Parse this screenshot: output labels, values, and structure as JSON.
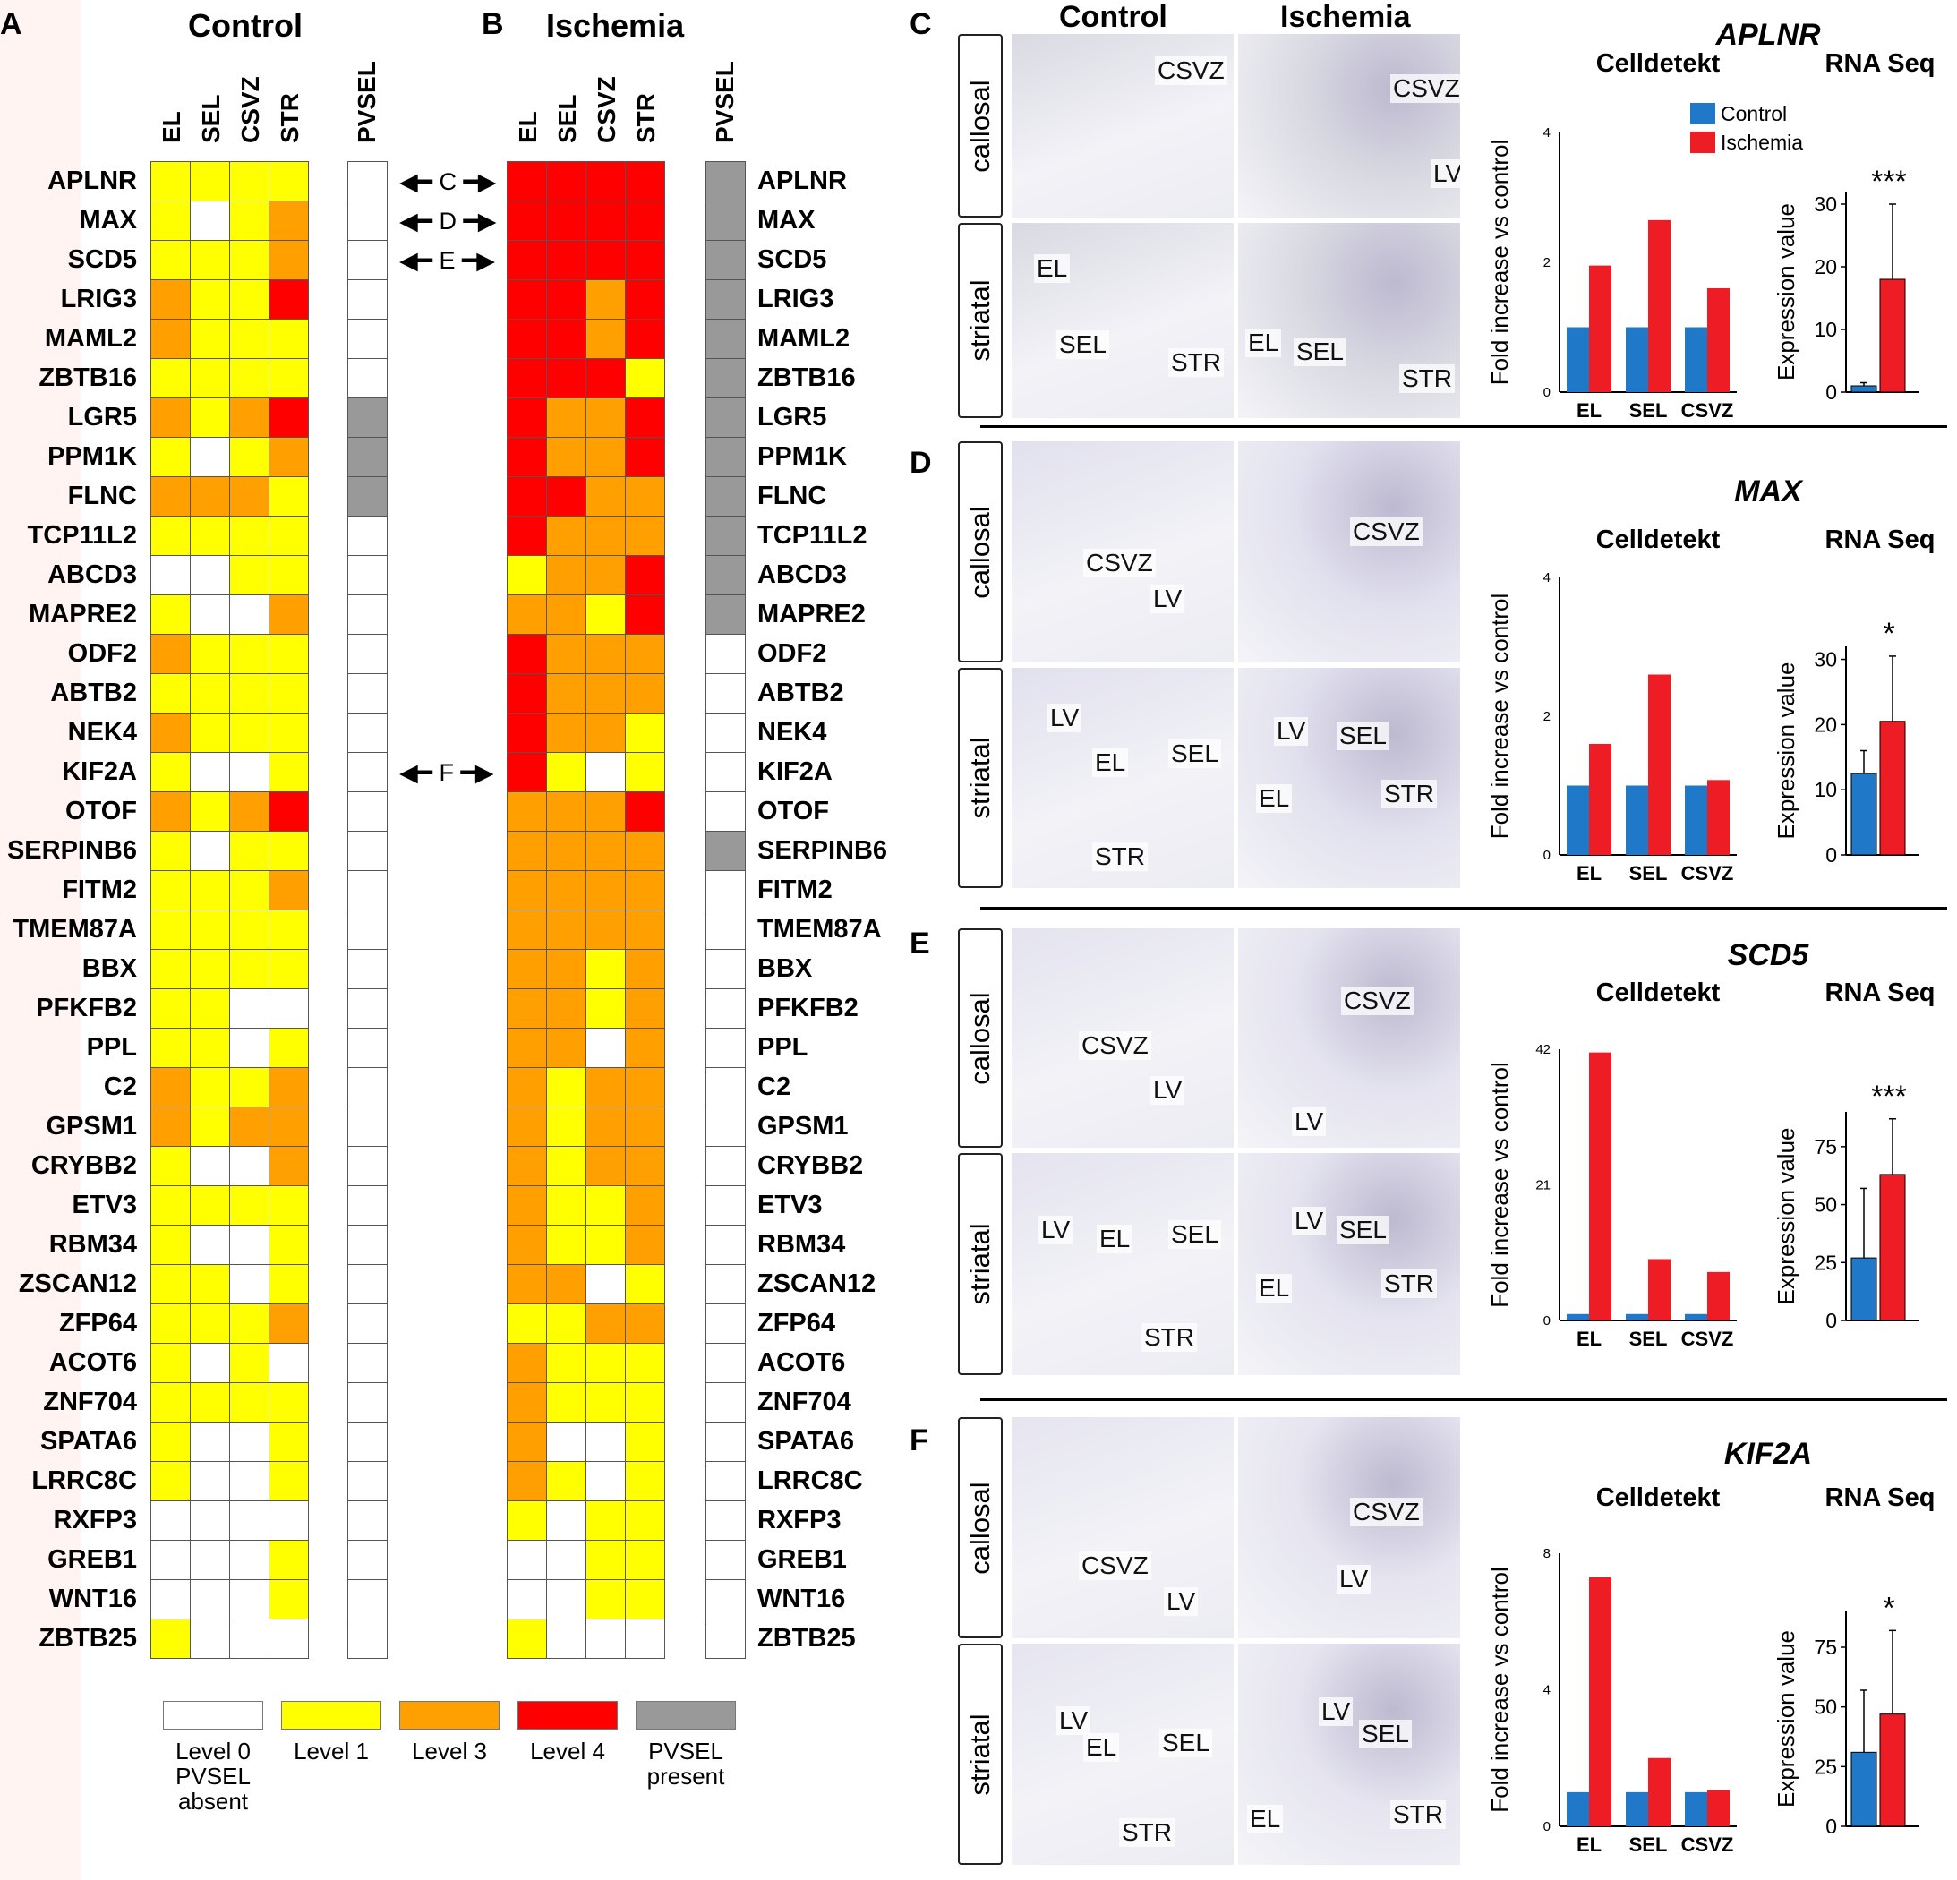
{
  "panel_letters": {
    "a": "A",
    "b": "B",
    "c": "C",
    "d": "D",
    "e": "E",
    "f": "F"
  },
  "heatmap": {
    "control_title": "Control",
    "ischemia_title": "Ischemia",
    "columns": [
      "EL",
      "SEL",
      "CSVZ",
      "STR"
    ],
    "pvsel_label": "PVSEL",
    "colors": {
      "0": "#ffffff",
      "1": "#ffff00",
      "3": "#ffa000",
      "4": "#ff0000",
      "pvsel_present": "#999999",
      "pvsel_absent": "#ffffff"
    },
    "genes": [
      "APLNR",
      "MAX",
      "SCD5",
      "LRIG3",
      "MAML2",
      "ZBTB16",
      "LGR5",
      "PPM1K",
      "FLNC",
      "TCP11L2",
      "ABCD3",
      "MAPRE2",
      "ODF2",
      "ABTB2",
      "NEK4",
      "KIF2A",
      "OTOF",
      "SERPINB6",
      "FITM2",
      "TMEM87A",
      "BBX",
      "PFKFB2",
      "PPL",
      "C2",
      "GPSM1",
      "CRYBB2",
      "ETV3",
      "RBM34",
      "ZSCAN12",
      "ZFP64",
      "ACOT6",
      "ZNF704",
      "SPATA6",
      "LRRC8C",
      "RXFP3",
      "GREB1",
      "WNT16",
      "ZBTB25"
    ],
    "control": [
      [
        1,
        1,
        1,
        1
      ],
      [
        1,
        0,
        1,
        3
      ],
      [
        1,
        1,
        1,
        3
      ],
      [
        3,
        1,
        1,
        4
      ],
      [
        3,
        1,
        1,
        1
      ],
      [
        1,
        1,
        1,
        1
      ],
      [
        3,
        1,
        3,
        4
      ],
      [
        1,
        0,
        1,
        3
      ],
      [
        3,
        3,
        3,
        1
      ],
      [
        1,
        1,
        1,
        1
      ],
      [
        0,
        0,
        1,
        1
      ],
      [
        1,
        0,
        0,
        3
      ],
      [
        3,
        1,
        1,
        1
      ],
      [
        1,
        1,
        1,
        1
      ],
      [
        3,
        1,
        1,
        1
      ],
      [
        1,
        0,
        0,
        1
      ],
      [
        3,
        1,
        3,
        4
      ],
      [
        1,
        0,
        1,
        1
      ],
      [
        1,
        1,
        1,
        3
      ],
      [
        1,
        1,
        1,
        1
      ],
      [
        1,
        1,
        1,
        1
      ],
      [
        1,
        1,
        0,
        0
      ],
      [
        1,
        1,
        0,
        1
      ],
      [
        3,
        1,
        1,
        3
      ],
      [
        3,
        1,
        3,
        3
      ],
      [
        1,
        0,
        0,
        3
      ],
      [
        1,
        1,
        1,
        1
      ],
      [
        1,
        0,
        0,
        1
      ],
      [
        1,
        1,
        0,
        1
      ],
      [
        1,
        1,
        1,
        3
      ],
      [
        1,
        0,
        1,
        0
      ],
      [
        1,
        1,
        1,
        1
      ],
      [
        1,
        0,
        0,
        1
      ],
      [
        1,
        0,
        0,
        1
      ],
      [
        0,
        0,
        0,
        0
      ],
      [
        0,
        0,
        0,
        1
      ],
      [
        0,
        0,
        0,
        1
      ],
      [
        1,
        0,
        0,
        0
      ]
    ],
    "control_pvsel": [
      0,
      0,
      0,
      0,
      0,
      0,
      1,
      1,
      1,
      0,
      0,
      0,
      0,
      0,
      0,
      0,
      0,
      0,
      0,
      0,
      0,
      0,
      0,
      0,
      0,
      0,
      0,
      0,
      0,
      0,
      0,
      0,
      0,
      0,
      0,
      0,
      0,
      0
    ],
    "ischemia": [
      [
        4,
        4,
        4,
        4
      ],
      [
        4,
        4,
        4,
        4
      ],
      [
        4,
        4,
        4,
        4
      ],
      [
        4,
        4,
        3,
        4
      ],
      [
        4,
        4,
        3,
        4
      ],
      [
        4,
        4,
        4,
        1
      ],
      [
        4,
        3,
        3,
        4
      ],
      [
        4,
        3,
        3,
        4
      ],
      [
        4,
        4,
        3,
        3
      ],
      [
        4,
        3,
        3,
        3
      ],
      [
        1,
        3,
        3,
        4
      ],
      [
        3,
        3,
        1,
        4
      ],
      [
        4,
        3,
        3,
        3
      ],
      [
        4,
        3,
        3,
        3
      ],
      [
        4,
        3,
        3,
        1
      ],
      [
        4,
        1,
        0,
        1
      ],
      [
        3,
        3,
        3,
        4
      ],
      [
        3,
        3,
        3,
        3
      ],
      [
        3,
        3,
        3,
        3
      ],
      [
        3,
        3,
        3,
        3
      ],
      [
        3,
        3,
        1,
        3
      ],
      [
        3,
        3,
        1,
        3
      ],
      [
        3,
        3,
        0,
        3
      ],
      [
        3,
        1,
        3,
        3
      ],
      [
        3,
        1,
        3,
        3
      ],
      [
        3,
        1,
        3,
        3
      ],
      [
        3,
        1,
        1,
        3
      ],
      [
        3,
        1,
        1,
        3
      ],
      [
        3,
        3,
        0,
        1
      ],
      [
        1,
        1,
        3,
        3
      ],
      [
        3,
        1,
        1,
        1
      ],
      [
        3,
        1,
        1,
        1
      ],
      [
        3,
        0,
        0,
        1
      ],
      [
        3,
        1,
        0,
        1
      ],
      [
        1,
        0,
        1,
        1
      ],
      [
        0,
        0,
        1,
        1
      ],
      [
        0,
        0,
        1,
        1
      ],
      [
        1,
        0,
        0,
        0
      ]
    ],
    "ischemia_pvsel": [
      1,
      1,
      1,
      1,
      1,
      1,
      1,
      1,
      1,
      1,
      1,
      1,
      0,
      0,
      0,
      0,
      0,
      1,
      0,
      0,
      0,
      0,
      0,
      0,
      0,
      0,
      0,
      0,
      0,
      0,
      0,
      0,
      0,
      0,
      0,
      0,
      0,
      0
    ],
    "arrows": [
      {
        "label": "C",
        "gene": "APLNR"
      },
      {
        "label": "D",
        "gene": "MAX"
      },
      {
        "label": "E",
        "gene": "SCD5"
      },
      {
        "label": "F",
        "gene": "KIF2A"
      }
    ],
    "legend": [
      {
        "key": "0",
        "label": "Level 0",
        "sub": "PVSEL absent"
      },
      {
        "key": "1",
        "label": "Level 1",
        "sub": ""
      },
      {
        "key": "3",
        "label": "Level 3",
        "sub": ""
      },
      {
        "key": "4",
        "label": "Level 4",
        "sub": ""
      },
      {
        "key": "pvsel_present",
        "label": "PVSEL",
        "sub": "present"
      }
    ]
  },
  "micrographs": {
    "col_control": "Control",
    "col_ischemia": "Ischemia",
    "row_callosal": "callosal",
    "row_striatal": "striatal",
    "labels": {
      "csvz": "CSVZ",
      "lv": "LV",
      "el": "EL",
      "sel": "SEL",
      "str": "STR"
    }
  },
  "chart_data": [
    {
      "type": "bar",
      "panel": "C",
      "gene": "APLNR",
      "title": "Celldetekt",
      "categories": [
        "EL",
        "SEL",
        "CSVZ"
      ],
      "series": [
        {
          "name": "Control",
          "values": [
            1,
            1,
            1
          ]
        },
        {
          "name": "Ischemia",
          "values": [
            1.95,
            2.65,
            1.6
          ]
        }
      ],
      "ylabel": "Fold increase vs control",
      "yticks": [
        0,
        2,
        4
      ],
      "ylim": [
        0,
        4
      ]
    },
    {
      "type": "bar",
      "panel": "C",
      "gene": "APLNR",
      "title": "RNA Seq",
      "categories": [
        "Control",
        "Ischemia"
      ],
      "values": [
        1,
        18
      ],
      "errors": [
        0.5,
        12
      ],
      "significance": "***",
      "ylabel": "Expression value",
      "yticks": [
        0,
        10,
        20,
        30
      ],
      "ylim": [
        0,
        32
      ]
    },
    {
      "type": "bar",
      "panel": "D",
      "gene": "MAX",
      "title": "Celldetekt",
      "categories": [
        "EL",
        "SEL",
        "CSVZ"
      ],
      "series": [
        {
          "name": "Control",
          "values": [
            1,
            1,
            1
          ]
        },
        {
          "name": "Ischemia",
          "values": [
            1.6,
            2.6,
            1.08
          ]
        }
      ],
      "ylabel": "Fold increase vs control",
      "yticks": [
        0,
        2,
        4
      ],
      "ylim": [
        0,
        4
      ]
    },
    {
      "type": "bar",
      "panel": "D",
      "gene": "MAX",
      "title": "RNA Seq",
      "categories": [
        "Control",
        "Ischemia"
      ],
      "values": [
        12.5,
        20.5
      ],
      "errors": [
        3.5,
        10
      ],
      "significance": "*",
      "ylabel": "Expression value",
      "yticks": [
        0,
        10,
        20,
        30
      ],
      "ylim": [
        0,
        32
      ]
    },
    {
      "type": "bar",
      "panel": "E",
      "gene": "SCD5",
      "title": "Celldetekt",
      "categories": [
        "EL",
        "SEL",
        "CSVZ"
      ],
      "series": [
        {
          "name": "Control",
          "values": [
            1,
            1,
            1
          ]
        },
        {
          "name": "Ischemia",
          "values": [
            41.5,
            9.5,
            7.5
          ]
        }
      ],
      "ylabel": "Fold increase vs control",
      "yticks": [
        0,
        21,
        42
      ],
      "ylim": [
        0,
        42
      ]
    },
    {
      "type": "bar",
      "panel": "E",
      "gene": "SCD5",
      "title": "RNA Seq",
      "categories": [
        "Control",
        "Ischemia"
      ],
      "values": [
        27,
        63
      ],
      "errors": [
        30,
        24
      ],
      "significance": "***",
      "ylabel": "Expression value",
      "yticks": [
        0,
        25,
        50,
        75
      ],
      "ylim": [
        0,
        90
      ]
    },
    {
      "type": "bar",
      "panel": "F",
      "gene": "KIF2A",
      "title": "Celldetekt",
      "categories": [
        "EL",
        "SEL",
        "CSVZ"
      ],
      "series": [
        {
          "name": "Control",
          "values": [
            1,
            1,
            1
          ]
        },
        {
          "name": "Ischemia",
          "values": [
            7.3,
            2,
            1.05
          ]
        }
      ],
      "ylabel": "Fold increase vs control",
      "yticks": [
        0,
        4,
        8
      ],
      "ylim": [
        0,
        8
      ]
    },
    {
      "type": "bar",
      "panel": "F",
      "gene": "KIF2A",
      "title": "RNA Seq",
      "categories": [
        "Control",
        "Ischemia"
      ],
      "values": [
        31,
        47
      ],
      "errors": [
        26,
        35
      ],
      "significance": "*",
      "ylabel": "Expression value",
      "yticks": [
        0,
        25,
        50,
        75
      ],
      "ylim": [
        0,
        90
      ]
    }
  ],
  "chart_legend": [
    {
      "name": "Control",
      "color": "#1f78c8"
    },
    {
      "name": "Ischemia",
      "color": "#ee1c25"
    }
  ]
}
